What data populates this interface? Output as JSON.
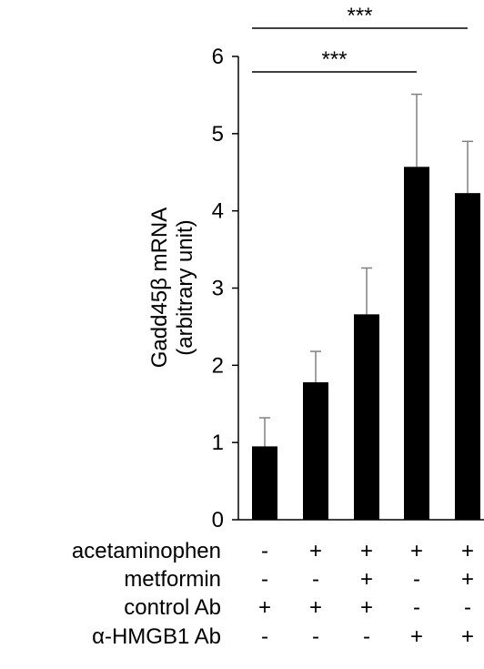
{
  "chart_data": {
    "type": "bar",
    "title": "",
    "xlabel": "",
    "ylabel_lines": [
      "Gadd45β mRNA",
      "(arbitrary unit)"
    ],
    "ylim": [
      0,
      6
    ],
    "yticks": [
      "0",
      "1",
      "2",
      "3",
      "4",
      "5",
      "6"
    ],
    "values": [
      0.95,
      1.78,
      2.66,
      4.57,
      4.23
    ],
    "errors": [
      0.37,
      0.4,
      0.6,
      0.94,
      0.67
    ],
    "bar_color": "#000000",
    "grid": false,
    "conditions": [
      {
        "label": "acetaminophen",
        "marks": [
          "-",
          "+",
          "+",
          "+",
          "+"
        ]
      },
      {
        "label": "metformin",
        "marks": [
          "-",
          "-",
          "+",
          "-",
          "+"
        ]
      },
      {
        "label": "control Ab",
        "marks": [
          "+",
          "+",
          "+",
          "-",
          "-"
        ]
      },
      {
        "label": "α-HMGB1 Ab",
        "marks": [
          "-",
          "-",
          "-",
          "+",
          "+"
        ]
      }
    ],
    "significance": [
      {
        "from": 0,
        "to": 3,
        "label": "***"
      },
      {
        "from": 0,
        "to": 4,
        "label": "***"
      }
    ]
  }
}
